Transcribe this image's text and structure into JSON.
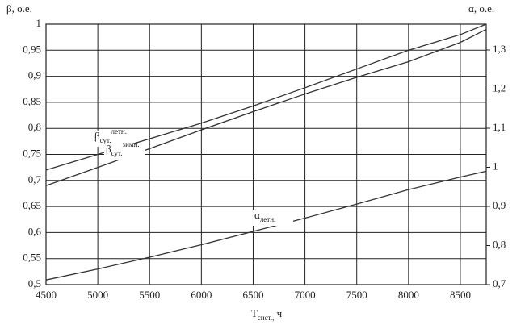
{
  "chart_data": {
    "type": "line",
    "ylabel": {
      "text": "β",
      "tail": ", о.е."
    },
    "y2label": {
      "text": "α",
      "tail": ", о.е."
    },
    "xlabel": {
      "text": "T",
      "sub": "сист.,",
      "tail": " ч"
    },
    "x": [
      4500,
      5000,
      5500,
      6000,
      6500,
      7000,
      7500,
      8000,
      8500,
      8750
    ],
    "xlim": [
      4500,
      8750
    ],
    "xticks": [
      4500,
      5000,
      5500,
      6000,
      6500,
      7000,
      7500,
      8000,
      8500
    ],
    "ylim": [
      0.5,
      1
    ],
    "yticks": [
      {
        "value": 0.5,
        "label": "0,5"
      },
      {
        "value": 0.55,
        "label": "0,55"
      },
      {
        "value": 0.6,
        "label": "0,6"
      },
      {
        "value": 0.65,
        "label": "0,65"
      },
      {
        "value": 0.7,
        "label": "0,7"
      },
      {
        "value": 0.75,
        "label": "0,75"
      },
      {
        "value": 0.8,
        "label": "0,8"
      },
      {
        "value": 0.85,
        "label": "0,85"
      },
      {
        "value": 0.9,
        "label": "0,9"
      },
      {
        "value": 0.95,
        "label": "0,95"
      },
      1
    ],
    "y2lim": [
      0.7,
      1.366
    ],
    "y2ticks": [
      {
        "value": 0.7,
        "label": "0,7"
      },
      {
        "value": 0.8,
        "label": "0,8"
      },
      {
        "value": 0.9,
        "label": "0,9"
      },
      1,
      {
        "value": 1.1,
        "label": "1,1"
      },
      {
        "value": 1.2,
        "label": "1,2"
      },
      {
        "value": 1.3,
        "label": "1,3"
      }
    ],
    "grid": true,
    "series": [
      {
        "label": {
          "text": "β",
          "sub": "сут.",
          "sup": "летн."
        },
        "color": "#333333",
        "values": [
          0.72,
          0.75,
          0.78,
          0.81,
          0.843,
          0.878,
          0.914,
          0.95,
          0.98,
          1.0
        ]
      },
      {
        "label": {
          "text": "β",
          "sub": "сут.",
          "sup": "зимн."
        },
        "color": "#333333",
        "values": [
          0.69,
          0.725,
          0.761,
          0.797,
          0.832,
          0.866,
          0.898,
          0.928,
          0.965,
          0.99
        ]
      },
      {
        "label": {
          "text": "α",
          "sub": "летн."
        },
        "color": "#333333",
        "axis": "y2",
        "values": [
          0.712,
          0.74,
          0.77,
          0.802,
          0.836,
          0.87,
          0.906,
          0.943,
          0.975,
          0.99
        ]
      }
    ]
  }
}
